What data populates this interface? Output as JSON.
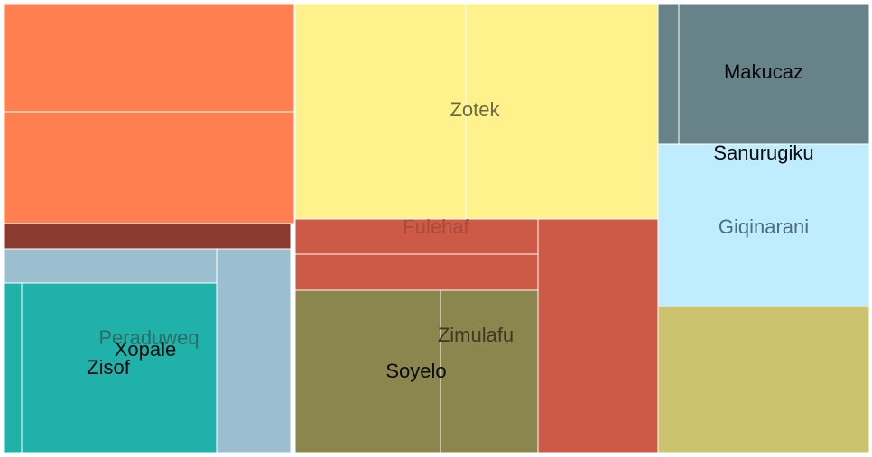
{
  "chart_data": {
    "type": "treemap",
    "title": "",
    "labels": [
      {
        "text": "Zotek",
        "color": "#6b6b45"
      },
      {
        "text": "Makucaz",
        "color": "#0a0a0a"
      },
      {
        "text": "Sanurugiku",
        "color": "#0a0a0a"
      },
      {
        "text": "Giqinarani",
        "color": "#4a7080"
      },
      {
        "text": "Fulehaf",
        "color": "#a84a3c"
      },
      {
        "text": "Zimulafu",
        "color": "#3a3a25"
      },
      {
        "text": "Soyelo",
        "color": "#0a0a0a"
      },
      {
        "text": "Peraduweq",
        "color": "#2a6e66"
      },
      {
        "text": "Xopale",
        "color": "#0a0a0a"
      },
      {
        "text": "Zisof",
        "color": "#0a0a0a"
      }
    ],
    "colors": {
      "orange": "#ff7f50",
      "dark_red": "#8b3a2f",
      "yellow": "#fff28c",
      "slate": "#68828a",
      "light_blue": "#c0ecff",
      "olive_light": "#ccc36e",
      "red": "#cd5a47",
      "olive": "#8b864d",
      "gray_blue": "#9bbfcf",
      "teal": "#20b2aa"
    }
  }
}
